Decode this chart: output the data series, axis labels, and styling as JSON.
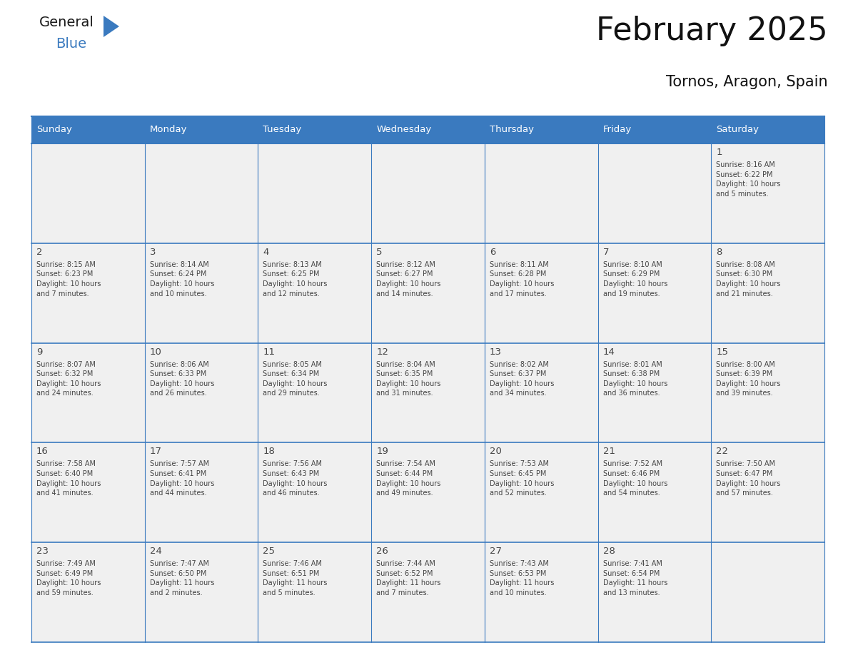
{
  "title": "February 2025",
  "subtitle": "Tornos, Aragon, Spain",
  "header_color": "#3a7abf",
  "header_text_color": "#ffffff",
  "cell_bg_color": "#f0f0f0",
  "border_color": "#3a7abf",
  "text_color": "#444444",
  "days_of_week": [
    "Sunday",
    "Monday",
    "Tuesday",
    "Wednesday",
    "Thursday",
    "Friday",
    "Saturday"
  ],
  "calendar_data": [
    [
      {
        "day": "",
        "info": ""
      },
      {
        "day": "",
        "info": ""
      },
      {
        "day": "",
        "info": ""
      },
      {
        "day": "",
        "info": ""
      },
      {
        "day": "",
        "info": ""
      },
      {
        "day": "",
        "info": ""
      },
      {
        "day": "1",
        "info": "Sunrise: 8:16 AM\nSunset: 6:22 PM\nDaylight: 10 hours\nand 5 minutes."
      }
    ],
    [
      {
        "day": "2",
        "info": "Sunrise: 8:15 AM\nSunset: 6:23 PM\nDaylight: 10 hours\nand 7 minutes."
      },
      {
        "day": "3",
        "info": "Sunrise: 8:14 AM\nSunset: 6:24 PM\nDaylight: 10 hours\nand 10 minutes."
      },
      {
        "day": "4",
        "info": "Sunrise: 8:13 AM\nSunset: 6:25 PM\nDaylight: 10 hours\nand 12 minutes."
      },
      {
        "day": "5",
        "info": "Sunrise: 8:12 AM\nSunset: 6:27 PM\nDaylight: 10 hours\nand 14 minutes."
      },
      {
        "day": "6",
        "info": "Sunrise: 8:11 AM\nSunset: 6:28 PM\nDaylight: 10 hours\nand 17 minutes."
      },
      {
        "day": "7",
        "info": "Sunrise: 8:10 AM\nSunset: 6:29 PM\nDaylight: 10 hours\nand 19 minutes."
      },
      {
        "day": "8",
        "info": "Sunrise: 8:08 AM\nSunset: 6:30 PM\nDaylight: 10 hours\nand 21 minutes."
      }
    ],
    [
      {
        "day": "9",
        "info": "Sunrise: 8:07 AM\nSunset: 6:32 PM\nDaylight: 10 hours\nand 24 minutes."
      },
      {
        "day": "10",
        "info": "Sunrise: 8:06 AM\nSunset: 6:33 PM\nDaylight: 10 hours\nand 26 minutes."
      },
      {
        "day": "11",
        "info": "Sunrise: 8:05 AM\nSunset: 6:34 PM\nDaylight: 10 hours\nand 29 minutes."
      },
      {
        "day": "12",
        "info": "Sunrise: 8:04 AM\nSunset: 6:35 PM\nDaylight: 10 hours\nand 31 minutes."
      },
      {
        "day": "13",
        "info": "Sunrise: 8:02 AM\nSunset: 6:37 PM\nDaylight: 10 hours\nand 34 minutes."
      },
      {
        "day": "14",
        "info": "Sunrise: 8:01 AM\nSunset: 6:38 PM\nDaylight: 10 hours\nand 36 minutes."
      },
      {
        "day": "15",
        "info": "Sunrise: 8:00 AM\nSunset: 6:39 PM\nDaylight: 10 hours\nand 39 minutes."
      }
    ],
    [
      {
        "day": "16",
        "info": "Sunrise: 7:58 AM\nSunset: 6:40 PM\nDaylight: 10 hours\nand 41 minutes."
      },
      {
        "day": "17",
        "info": "Sunrise: 7:57 AM\nSunset: 6:41 PM\nDaylight: 10 hours\nand 44 minutes."
      },
      {
        "day": "18",
        "info": "Sunrise: 7:56 AM\nSunset: 6:43 PM\nDaylight: 10 hours\nand 46 minutes."
      },
      {
        "day": "19",
        "info": "Sunrise: 7:54 AM\nSunset: 6:44 PM\nDaylight: 10 hours\nand 49 minutes."
      },
      {
        "day": "20",
        "info": "Sunrise: 7:53 AM\nSunset: 6:45 PM\nDaylight: 10 hours\nand 52 minutes."
      },
      {
        "day": "21",
        "info": "Sunrise: 7:52 AM\nSunset: 6:46 PM\nDaylight: 10 hours\nand 54 minutes."
      },
      {
        "day": "22",
        "info": "Sunrise: 7:50 AM\nSunset: 6:47 PM\nDaylight: 10 hours\nand 57 minutes."
      }
    ],
    [
      {
        "day": "23",
        "info": "Sunrise: 7:49 AM\nSunset: 6:49 PM\nDaylight: 10 hours\nand 59 minutes."
      },
      {
        "day": "24",
        "info": "Sunrise: 7:47 AM\nSunset: 6:50 PM\nDaylight: 11 hours\nand 2 minutes."
      },
      {
        "day": "25",
        "info": "Sunrise: 7:46 AM\nSunset: 6:51 PM\nDaylight: 11 hours\nand 5 minutes."
      },
      {
        "day": "26",
        "info": "Sunrise: 7:44 AM\nSunset: 6:52 PM\nDaylight: 11 hours\nand 7 minutes."
      },
      {
        "day": "27",
        "info": "Sunrise: 7:43 AM\nSunset: 6:53 PM\nDaylight: 11 hours\nand 10 minutes."
      },
      {
        "day": "28",
        "info": "Sunrise: 7:41 AM\nSunset: 6:54 PM\nDaylight: 11 hours\nand 13 minutes."
      },
      {
        "day": "",
        "info": ""
      }
    ]
  ],
  "logo_text_general": "General",
  "logo_text_blue": "Blue",
  "logo_triangle_color": "#3a7abf",
  "fig_width": 11.88,
  "fig_height": 9.18,
  "dpi": 100
}
